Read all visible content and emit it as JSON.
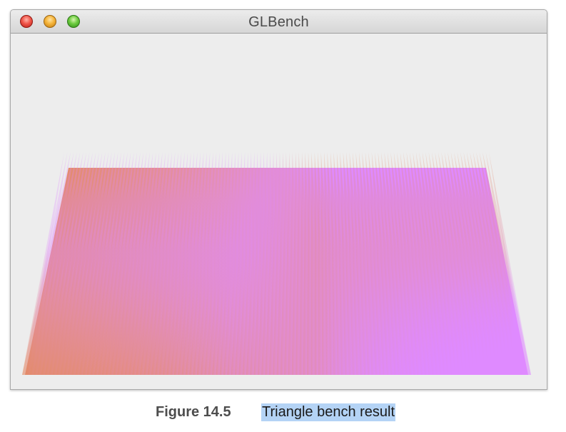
{
  "window": {
    "title": "GLBench",
    "buttons": [
      "close",
      "minimize",
      "zoom"
    ],
    "colors": {
      "start": "#e38a5e",
      "mid": "#e48fb2",
      "end": "#df8aff",
      "background": "#ededed"
    }
  },
  "caption": {
    "label": "Figure 14.5",
    "text": "Triangle bench result"
  }
}
